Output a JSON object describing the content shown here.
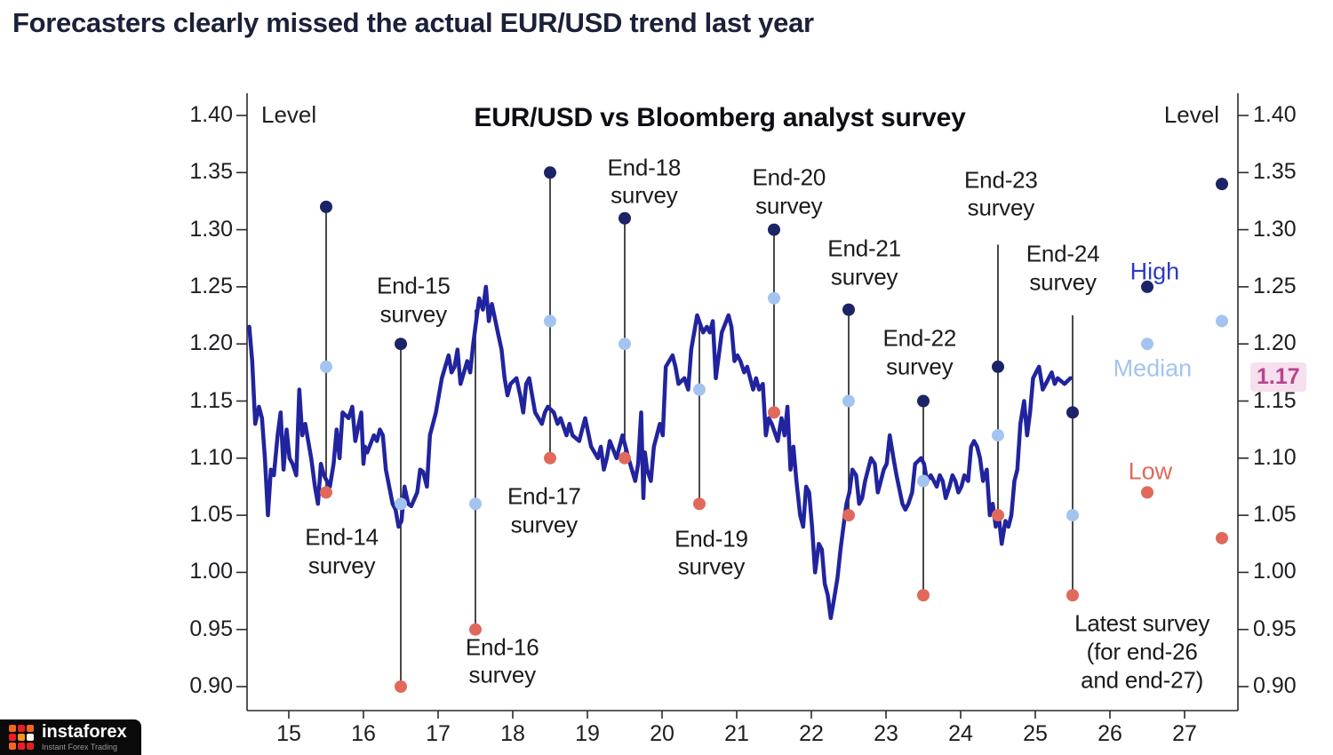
{
  "page": {
    "title": "Forecasters clearly missed the actual EUR/USD trend last year"
  },
  "watermark": {
    "brand": "instaforex",
    "tagline": "Instant Forex Trading"
  },
  "chart_data": {
    "type": "line",
    "title": "EUR/USD vs Bloomberg analyst survey",
    "level_label": "Level",
    "current_price": {
      "label": "1.17",
      "value": 1.17
    },
    "y_ticks": [
      "1.40",
      "1.35",
      "1.30",
      "1.25",
      "1.20",
      "1.15",
      "1.10",
      "1.05",
      "1.00",
      "0.95",
      "0.90"
    ],
    "x_ticks": [
      "15",
      "16",
      "17",
      "18",
      "19",
      "20",
      "21",
      "22",
      "23",
      "24",
      "25",
      "26",
      "27"
    ],
    "ylim": [
      0.88,
      1.41
    ],
    "xlim": [
      14.44,
      27.71
    ],
    "grid": false,
    "legend_position": "right",
    "colors": {
      "price_line": "#21249e",
      "high_dot": "#1c2366",
      "median_dot": "#a3c4ef",
      "low_dot": "#e0695b",
      "survey_line": "#1c1c1c",
      "axis": "#2a2a2a",
      "current_price_color": "#b5458c",
      "current_price_bg": "#f7e0ee"
    },
    "legend": [
      {
        "label": "High",
        "color": "#2b3ac6",
        "x": 26.6,
        "y": 1.263
      },
      {
        "label": "Median",
        "color": "#a3c4ef",
        "x": 26.57,
        "y": 1.178
      },
      {
        "label": "Low",
        "color": "#e0695b",
        "x": 26.54,
        "y": 1.088
      }
    ],
    "surveys": [
      {
        "name": "End-14 survey",
        "x": 15.5,
        "high": 1.32,
        "median": 1.18,
        "low": 1.07
      },
      {
        "name": "End-15 survey",
        "x": 16.5,
        "high": 1.2,
        "median": 1.06,
        "low": 0.9
      },
      {
        "name": "End-16 survey",
        "x": 17.5,
        "high": 1.23,
        "median": 1.06,
        "low": 0.95,
        "high_visible": false
      },
      {
        "name": "End-17 survey",
        "x": 18.5,
        "high": 1.35,
        "median": 1.22,
        "low": 1.1
      },
      {
        "name": "End-18 survey",
        "x": 19.5,
        "high": 1.31,
        "median": 1.2,
        "low": 1.1
      },
      {
        "name": "End-19 survey",
        "x": 20.5,
        "high": 1.22,
        "median": 1.16,
        "low": 1.06,
        "high_visible": false
      },
      {
        "name": "End-20 survey",
        "x": 21.5,
        "high": 1.3,
        "median": 1.24,
        "low": 1.14
      },
      {
        "name": "End-21 survey",
        "x": 22.5,
        "high": 1.23,
        "median": 1.15,
        "low": 1.05
      },
      {
        "name": "End-22 survey",
        "x": 23.5,
        "high": 1.15,
        "median": 1.08,
        "low": 0.98
      },
      {
        "name": "End-23 survey",
        "x": 24.5,
        "high": 1.18,
        "median": 1.12,
        "low": 1.05,
        "line_top": 1.287
      },
      {
        "name": "End-24 survey",
        "x": 25.5,
        "high": 1.14,
        "median": 1.05,
        "low": 0.98,
        "line_top": 1.225
      },
      {
        "name": "Latest survey (end-26)",
        "x": 26.5,
        "high": 1.25,
        "median": 1.2,
        "low": 1.07,
        "line": false
      },
      {
        "name": "Latest survey (end-27)",
        "x": 27.5,
        "high": 1.34,
        "median": 1.22,
        "low": 1.03,
        "line": false
      }
    ],
    "annotations": [
      {
        "lines": [
          "End-14",
          "survey"
        ],
        "x": 15.71,
        "y": 1.018
      },
      {
        "lines": [
          "End-15",
          "survey"
        ],
        "x": 16.67,
        "y": 1.238
      },
      {
        "lines": [
          "End-16",
          "survey"
        ],
        "x": 17.86,
        "y": 0.922
      },
      {
        "lines": [
          "End-17",
          "survey"
        ],
        "x": 18.42,
        "y": 1.054
      },
      {
        "lines": [
          "End-18",
          "survey"
        ],
        "x": 19.76,
        "y": 1.342
      },
      {
        "lines": [
          "End-19",
          "survey"
        ],
        "x": 20.66,
        "y": 1.017
      },
      {
        "lines": [
          "End-20",
          "survey"
        ],
        "x": 21.7,
        "y": 1.333
      },
      {
        "lines": [
          "End-21",
          "survey"
        ],
        "x": 22.71,
        "y": 1.271
      },
      {
        "lines": [
          "End-22",
          "survey"
        ],
        "x": 23.45,
        "y": 1.192
      },
      {
        "lines": [
          "End-23",
          "survey"
        ],
        "x": 24.54,
        "y": 1.331
      },
      {
        "lines": [
          "End-24",
          "survey"
        ],
        "x": 25.37,
        "y": 1.266
      },
      {
        "lines": [
          "Latest survey",
          "(for end-26",
          "and end-27)"
        ],
        "x": 26.43,
        "y": 0.93
      }
    ],
    "series_price": {
      "name": "EUR/USD actual",
      "points": [
        [
          14.47,
          1.215
        ],
        [
          14.51,
          1.185
        ],
        [
          14.55,
          1.13
        ],
        [
          14.6,
          1.145
        ],
        [
          14.64,
          1.135
        ],
        [
          14.68,
          1.1
        ],
        [
          14.72,
          1.05
        ],
        [
          14.76,
          1.09
        ],
        [
          14.8,
          1.085
        ],
        [
          14.85,
          1.12
        ],
        [
          14.89,
          1.14
        ],
        [
          14.93,
          1.09
        ],
        [
          14.97,
          1.125
        ],
        [
          15.01,
          1.1
        ],
        [
          15.05,
          1.095
        ],
        [
          15.1,
          1.085
        ],
        [
          15.14,
          1.16
        ],
        [
          15.18,
          1.12
        ],
        [
          15.22,
          1.13
        ],
        [
          15.26,
          1.115
        ],
        [
          15.3,
          1.1
        ],
        [
          15.35,
          1.075
        ],
        [
          15.39,
          1.06
        ],
        [
          15.43,
          1.095
        ],
        [
          15.47,
          1.085
        ],
        [
          15.55,
          1.075
        ],
        [
          15.6,
          1.095
        ],
        [
          15.64,
          1.125
        ],
        [
          15.68,
          1.1
        ],
        [
          15.72,
          1.14
        ],
        [
          15.8,
          1.135
        ],
        [
          15.85,
          1.145
        ],
        [
          15.89,
          1.115
        ],
        [
          15.97,
          1.14
        ],
        [
          16.0,
          1.095
        ],
        [
          16.02,
          1.11
        ],
        [
          16.05,
          1.105
        ],
        [
          16.14,
          1.12
        ],
        [
          16.18,
          1.115
        ],
        [
          16.22,
          1.125
        ],
        [
          16.26,
          1.12
        ],
        [
          16.3,
          1.09
        ],
        [
          16.39,
          1.06
        ],
        [
          16.43,
          1.055
        ],
        [
          16.47,
          1.04
        ],
        [
          16.51,
          1.045
        ],
        [
          16.55,
          1.075
        ],
        [
          16.6,
          1.06
        ],
        [
          16.64,
          1.058
        ],
        [
          16.72,
          1.07
        ],
        [
          16.76,
          1.09
        ],
        [
          16.8,
          1.088
        ],
        [
          16.85,
          1.075
        ],
        [
          16.89,
          1.12
        ],
        [
          16.97,
          1.14
        ],
        [
          17.05,
          1.17
        ],
        [
          17.14,
          1.19
        ],
        [
          17.18,
          1.175
        ],
        [
          17.22,
          1.18
        ],
        [
          17.26,
          1.195
        ],
        [
          17.3,
          1.165
        ],
        [
          17.39,
          1.185
        ],
        [
          17.43,
          1.175
        ],
        [
          17.47,
          1.2
        ],
        [
          17.55,
          1.24
        ],
        [
          17.6,
          1.23
        ],
        [
          17.64,
          1.25
        ],
        [
          17.68,
          1.22
        ],
        [
          17.72,
          1.235
        ],
        [
          17.8,
          1.21
        ],
        [
          17.85,
          1.195
        ],
        [
          17.89,
          1.17
        ],
        [
          17.93,
          1.155
        ],
        [
          17.97,
          1.165
        ],
        [
          18.05,
          1.17
        ],
        [
          18.1,
          1.155
        ],
        [
          18.14,
          1.14
        ],
        [
          18.18,
          1.165
        ],
        [
          18.22,
          1.17
        ],
        [
          18.26,
          1.155
        ],
        [
          18.3,
          1.14
        ],
        [
          18.39,
          1.13
        ],
        [
          18.43,
          1.14
        ],
        [
          18.47,
          1.145
        ],
        [
          18.55,
          1.14
        ],
        [
          18.6,
          1.13
        ],
        [
          18.64,
          1.135
        ],
        [
          18.72,
          1.12
        ],
        [
          18.76,
          1.13
        ],
        [
          18.8,
          1.12
        ],
        [
          18.89,
          1.115
        ],
        [
          18.93,
          1.125
        ],
        [
          18.97,
          1.135
        ],
        [
          19.05,
          1.11
        ],
        [
          19.14,
          1.1
        ],
        [
          19.18,
          1.11
        ],
        [
          19.22,
          1.09
        ],
        [
          19.26,
          1.1
        ],
        [
          19.3,
          1.115
        ],
        [
          19.39,
          1.1
        ],
        [
          19.47,
          1.12
        ],
        [
          19.55,
          1.1
        ],
        [
          19.64,
          1.08
        ],
        [
          19.68,
          1.095
        ],
        [
          19.72,
          1.14
        ],
        [
          19.75,
          1.065
        ],
        [
          19.77,
          1.105
        ],
        [
          19.8,
          1.09
        ],
        [
          19.85,
          1.08
        ],
        [
          19.89,
          1.11
        ],
        [
          19.97,
          1.13
        ],
        [
          20.01,
          1.12
        ],
        [
          20.05,
          1.18
        ],
        [
          20.14,
          1.19
        ],
        [
          20.18,
          1.18
        ],
        [
          20.22,
          1.165
        ],
        [
          20.3,
          1.17
        ],
        [
          20.35,
          1.16
        ],
        [
          20.39,
          1.195
        ],
        [
          20.47,
          1.225
        ],
        [
          20.55,
          1.21
        ],
        [
          20.6,
          1.215
        ],
        [
          20.64,
          1.21
        ],
        [
          20.68,
          1.22
        ],
        [
          20.72,
          1.17
        ],
        [
          20.8,
          1.21
        ],
        [
          20.89,
          1.225
        ],
        [
          20.93,
          1.215
        ],
        [
          20.97,
          1.185
        ],
        [
          21.01,
          1.19
        ],
        [
          21.05,
          1.185
        ],
        [
          21.1,
          1.175
        ],
        [
          21.14,
          1.18
        ],
        [
          21.22,
          1.16
        ],
        [
          21.26,
          1.17
        ],
        [
          21.3,
          1.16
        ],
        [
          21.35,
          1.165
        ],
        [
          21.39,
          1.12
        ],
        [
          21.43,
          1.135
        ],
        [
          21.47,
          1.13
        ],
        [
          21.55,
          1.115
        ],
        [
          21.6,
          1.135
        ],
        [
          21.64,
          1.12
        ],
        [
          21.68,
          1.145
        ],
        [
          21.72,
          1.09
        ],
        [
          21.76,
          1.11
        ],
        [
          21.8,
          1.08
        ],
        [
          21.85,
          1.05
        ],
        [
          21.89,
          1.04
        ],
        [
          21.93,
          1.075
        ],
        [
          21.97,
          1.07
        ],
        [
          22.01,
          1.04
        ],
        [
          22.05,
          1.0
        ],
        [
          22.1,
          1.025
        ],
        [
          22.14,
          1.02
        ],
        [
          22.18,
          0.99
        ],
        [
          22.22,
          0.98
        ],
        [
          22.26,
          0.96
        ],
        [
          22.3,
          0.975
        ],
        [
          22.35,
          0.995
        ],
        [
          22.39,
          1.02
        ],
        [
          22.43,
          1.04
        ],
        [
          22.47,
          1.06
        ],
        [
          22.51,
          1.07
        ],
        [
          22.55,
          1.09
        ],
        [
          22.6,
          1.085
        ],
        [
          22.64,
          1.06
        ],
        [
          22.68,
          1.065
        ],
        [
          22.72,
          1.08
        ],
        [
          22.76,
          1.09
        ],
        [
          22.8,
          1.1
        ],
        [
          22.85,
          1.095
        ],
        [
          22.89,
          1.07
        ],
        [
          22.97,
          1.09
        ],
        [
          23.01,
          1.095
        ],
        [
          23.05,
          1.12
        ],
        [
          23.1,
          1.1
        ],
        [
          23.14,
          1.085
        ],
        [
          23.22,
          1.06
        ],
        [
          23.26,
          1.055
        ],
        [
          23.3,
          1.06
        ],
        [
          23.35,
          1.07
        ],
        [
          23.39,
          1.095
        ],
        [
          23.47,
          1.1
        ],
        [
          23.51,
          1.095
        ],
        [
          23.55,
          1.08
        ],
        [
          23.6,
          1.085
        ],
        [
          23.64,
          1.08
        ],
        [
          23.68,
          1.075
        ],
        [
          23.72,
          1.085
        ],
        [
          23.76,
          1.08
        ],
        [
          23.8,
          1.065
        ],
        [
          23.85,
          1.075
        ],
        [
          23.89,
          1.085
        ],
        [
          23.93,
          1.08
        ],
        [
          23.97,
          1.07
        ],
        [
          24.01,
          1.075
        ],
        [
          24.05,
          1.085
        ],
        [
          24.1,
          1.08
        ],
        [
          24.14,
          1.11
        ],
        [
          24.18,
          1.115
        ],
        [
          24.22,
          1.11
        ],
        [
          24.26,
          1.1
        ],
        [
          24.3,
          1.08
        ],
        [
          24.35,
          1.09
        ],
        [
          24.39,
          1.05
        ],
        [
          24.43,
          1.06
        ],
        [
          24.47,
          1.04
        ],
        [
          24.51,
          1.05
        ],
        [
          24.55,
          1.025
        ],
        [
          24.6,
          1.045
        ],
        [
          24.64,
          1.04
        ],
        [
          24.68,
          1.05
        ],
        [
          24.72,
          1.08
        ],
        [
          24.76,
          1.09
        ],
        [
          24.8,
          1.13
        ],
        [
          24.85,
          1.15
        ],
        [
          24.89,
          1.12
        ],
        [
          24.93,
          1.14
        ],
        [
          24.97,
          1.17
        ],
        [
          25.01,
          1.175
        ],
        [
          25.05,
          1.18
        ],
        [
          25.1,
          1.16
        ],
        [
          25.14,
          1.165
        ],
        [
          25.18,
          1.17
        ],
        [
          25.22,
          1.175
        ],
        [
          25.26,
          1.165
        ],
        [
          25.3,
          1.17
        ],
        [
          25.39,
          1.165
        ],
        [
          25.47,
          1.17
        ]
      ]
    }
  }
}
